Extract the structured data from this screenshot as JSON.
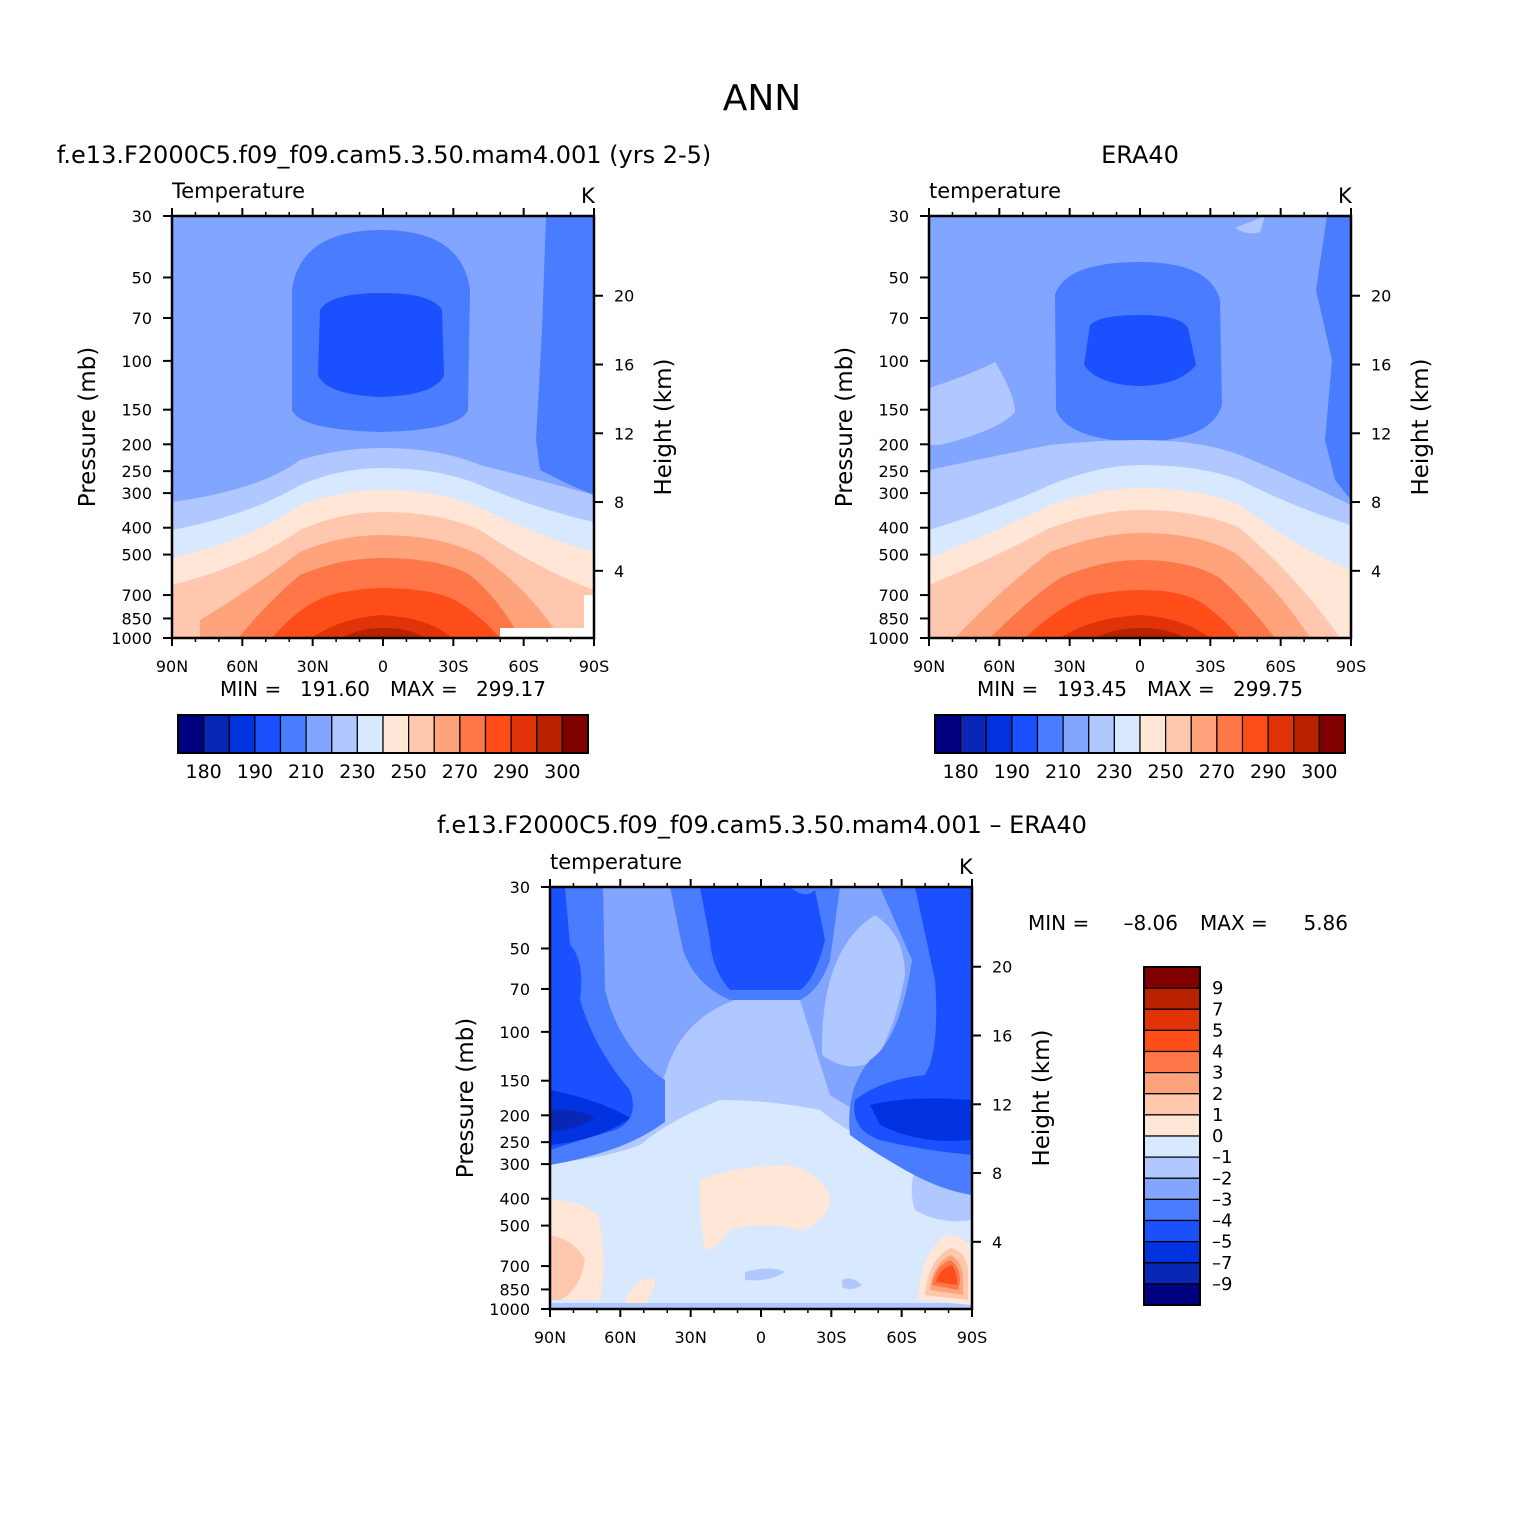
{
  "figure_title": "ANN",
  "colors": {
    "abs_scale": [
      "#000080",
      "#0a26b4",
      "#0033e0",
      "#1a50ff",
      "#4a7cff",
      "#82a6ff",
      "#b0c8ff",
      "#d8e8ff",
      "#ffe6d6",
      "#ffc7ae",
      "#ffa37d",
      "#ff7748",
      "#ff4d1a",
      "#e03308",
      "#b82200",
      "#800000"
    ],
    "diff_scale": [
      "#000080",
      "#0a26b4",
      "#0033e0",
      "#1a50ff",
      "#4a7cff",
      "#82a6ff",
      "#b0c8ff",
      "#d8e8ff",
      "#ffe6d6",
      "#ffc7ae",
      "#ffa37d",
      "#ff7748",
      "#ff4d1a",
      "#e03308",
      "#b82200",
      "#800000"
    ]
  },
  "chart_data": [
    {
      "type": "heatmap",
      "title": "f.e13.F2000C5.f09_f09.cam5.3.50.mam4.001 (yrs 2-5)",
      "variable": "Temperature",
      "units": "K",
      "ylabel": "Pressure (mb)",
      "ylabel_right": "Height (km)",
      "x_ticks": [
        "90N",
        "60N",
        "30N",
        "0",
        "30S",
        "60S",
        "90S"
      ],
      "y_ticks": [
        "30",
        "50",
        "70",
        "100",
        "150",
        "200",
        "250",
        "300",
        "400",
        "500",
        "700",
        "850",
        "1000"
      ],
      "y_ticks_right": [
        "20",
        "16",
        "12",
        "8",
        "4"
      ],
      "stats": {
        "min_label": "MIN =",
        "min": "191.60",
        "max_label": "MAX =",
        "max": "299.17"
      },
      "colorbar_labels": [
        "180",
        "190",
        "210",
        "230",
        "250",
        "270",
        "290",
        "300"
      ]
    },
    {
      "type": "heatmap",
      "title": "ERA40",
      "variable": "temperature",
      "units": "K",
      "ylabel": "Pressure (mb)",
      "ylabel_right": "Height (km)",
      "x_ticks": [
        "90N",
        "60N",
        "30N",
        "0",
        "30S",
        "60S",
        "90S"
      ],
      "y_ticks": [
        "30",
        "50",
        "70",
        "100",
        "150",
        "200",
        "250",
        "300",
        "400",
        "500",
        "700",
        "850",
        "1000"
      ],
      "y_ticks_right": [
        "20",
        "16",
        "12",
        "8",
        "4"
      ],
      "stats": {
        "min_label": "MIN =",
        "min": "193.45",
        "max_label": "MAX =",
        "max": "299.75"
      },
      "colorbar_labels": [
        "180",
        "190",
        "210",
        "230",
        "250",
        "270",
        "290",
        "300"
      ]
    },
    {
      "type": "heatmap",
      "title": "f.e13.F2000C5.f09_f09.cam5.3.50.mam4.001 – ERA40",
      "variable": "temperature",
      "units": "K",
      "ylabel": "Pressure (mb)",
      "ylabel_right": "Height (km)",
      "x_ticks": [
        "90N",
        "60N",
        "30N",
        "0",
        "30S",
        "60S",
        "90S"
      ],
      "y_ticks": [
        "30",
        "50",
        "70",
        "100",
        "150",
        "200",
        "250",
        "300",
        "400",
        "500",
        "700",
        "850",
        "1000"
      ],
      "y_ticks_right": [
        "20",
        "16",
        "12",
        "8",
        "4"
      ],
      "stats": {
        "min_label": "MIN =",
        "min": "–8.06",
        "max_label": "MAX =",
        "max": "5.86"
      },
      "colorbar_labels": [
        "9",
        "7",
        "5",
        "4",
        "3",
        "2",
        "1",
        "0",
        "–1",
        "–2",
        "–3",
        "–4",
        "–5",
        "–7",
        "–9"
      ]
    }
  ]
}
